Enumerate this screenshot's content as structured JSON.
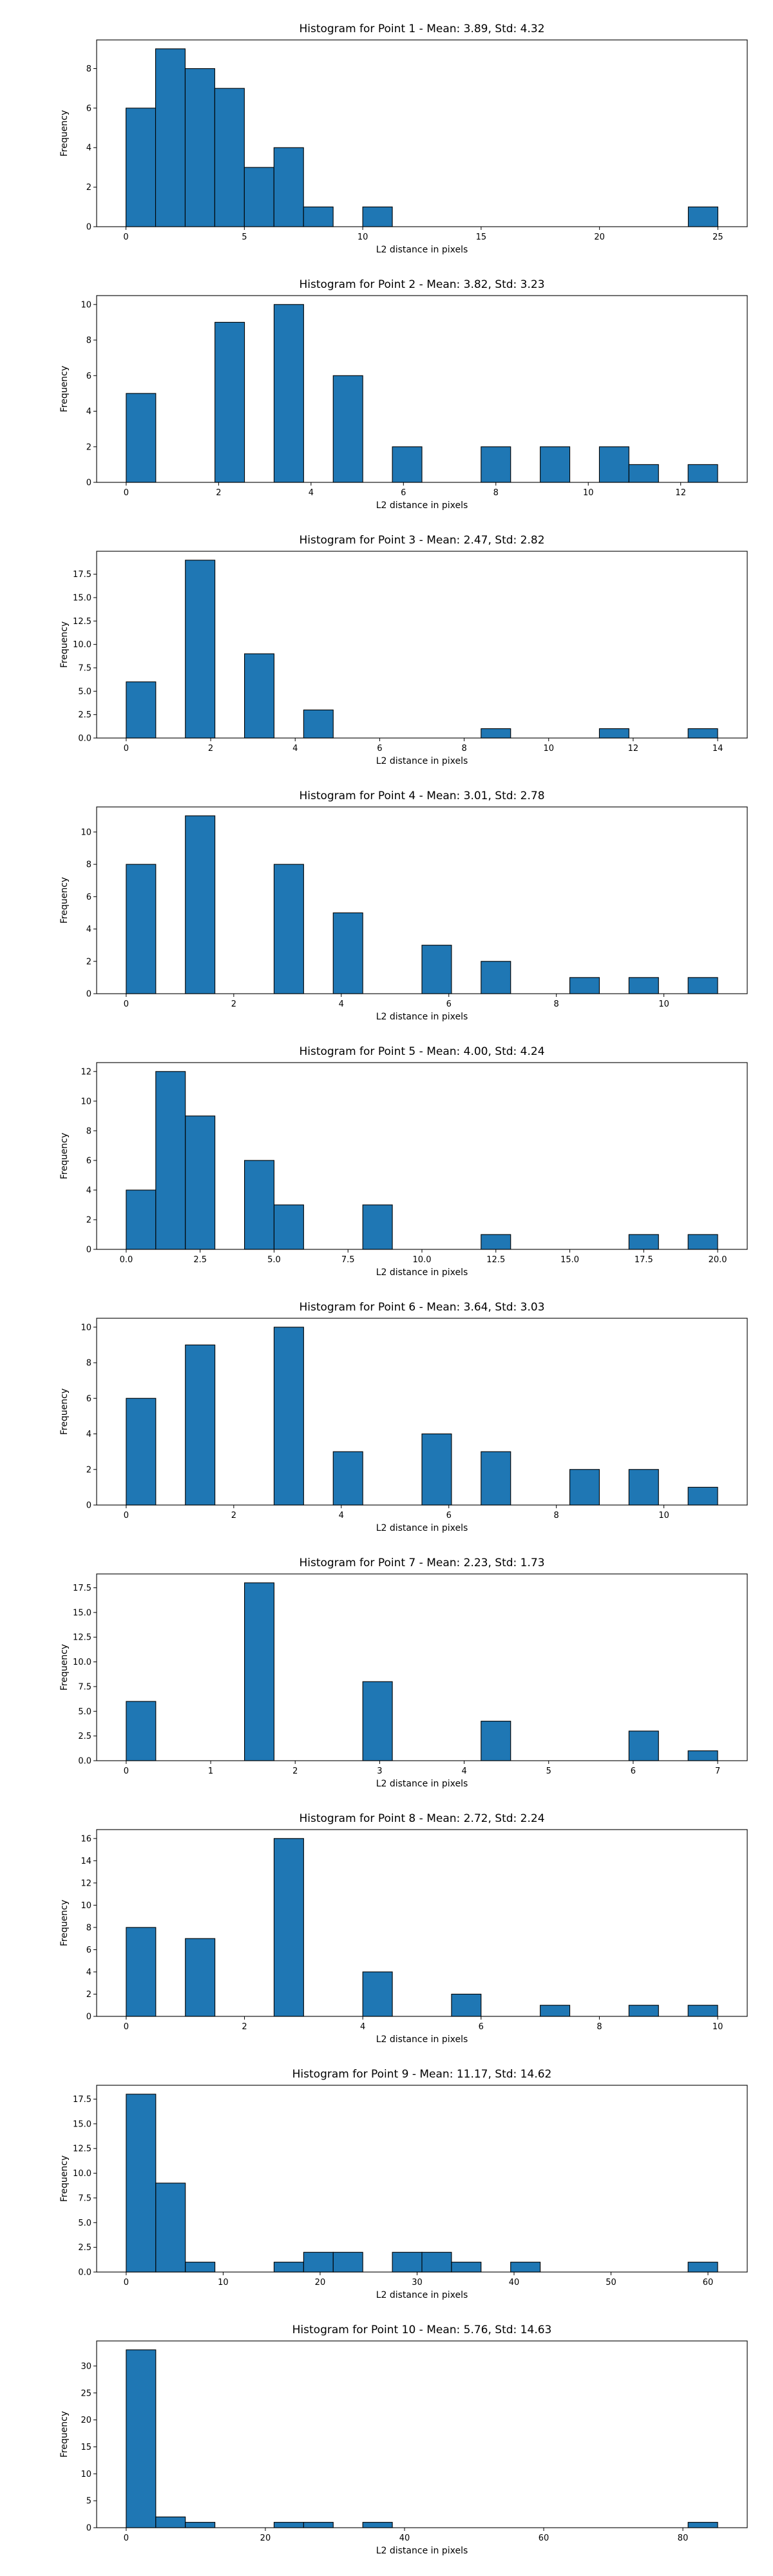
{
  "chart_data": [
    {
      "type": "bar",
      "title": "Histogram for Point 1 - Mean: 3.89, Std: 4.32",
      "xlabel": "L2 distance in pixels",
      "ylabel": "Frequency",
      "xlim": [
        -1.24,
        26.24
      ],
      "ylim": [
        0,
        9.45
      ],
      "xticks": [
        {
          "v": 0,
          "t": "0"
        },
        {
          "v": 5,
          "t": "5"
        },
        {
          "v": 10,
          "t": "10"
        },
        {
          "v": 15,
          "t": "15"
        },
        {
          "v": 20,
          "t": "20"
        },
        {
          "v": 25,
          "t": "25"
        }
      ],
      "yticks": [
        {
          "v": 0,
          "t": "0"
        },
        {
          "v": 2,
          "t": "2"
        },
        {
          "v": 4,
          "t": "4"
        },
        {
          "v": 6,
          "t": "6"
        },
        {
          "v": 8,
          "t": "8"
        }
      ],
      "bin_edges": [
        0,
        1.25,
        2.5,
        3.75,
        5,
        6.25,
        7.5,
        8.75,
        10,
        11.25,
        12.5,
        13.75,
        15,
        16.25,
        17.5,
        18.75,
        20,
        21.25,
        22.5,
        23.75,
        25
      ],
      "counts": [
        6,
        9,
        8,
        7,
        3,
        4,
        1,
        0,
        1,
        0,
        0,
        0,
        0,
        0,
        0,
        0,
        0,
        0,
        0,
        1
      ]
    },
    {
      "type": "bar",
      "title": "Histogram for Point 2 - Mean: 3.82, Std: 3.23",
      "xlabel": "L2 distance in pixels",
      "ylabel": "Frequency",
      "xlim": [
        -0.64,
        13.44
      ],
      "ylim": [
        0,
        10.5
      ],
      "xticks": [
        {
          "v": 0,
          "t": "0"
        },
        {
          "v": 2,
          "t": "2"
        },
        {
          "v": 4,
          "t": "4"
        },
        {
          "v": 6,
          "t": "6"
        },
        {
          "v": 8,
          "t": "8"
        },
        {
          "v": 10,
          "t": "10"
        },
        {
          "v": 12,
          "t": "12"
        }
      ],
      "yticks": [
        {
          "v": 0,
          "t": "0"
        },
        {
          "v": 2,
          "t": "2"
        },
        {
          "v": 4,
          "t": "4"
        },
        {
          "v": 6,
          "t": "6"
        },
        {
          "v": 8,
          "t": "8"
        },
        {
          "v": 10,
          "t": "10"
        }
      ],
      "bin_edges": [
        0,
        0.64,
        1.28,
        1.92,
        2.56,
        3.2,
        3.84,
        4.48,
        5.12,
        5.76,
        6.4,
        7.04,
        7.68,
        8.32,
        8.96,
        9.6,
        10.24,
        10.88,
        11.52,
        12.16,
        12.8
      ],
      "counts": [
        5,
        0,
        0,
        9,
        0,
        10,
        0,
        6,
        0,
        2,
        0,
        0,
        2,
        0,
        2,
        0,
        2,
        1,
        0,
        1
      ]
    },
    {
      "type": "bar",
      "title": "Histogram for Point 3 - Mean: 2.47, Std: 2.82",
      "xlabel": "L2 distance in pixels",
      "ylabel": "Frequency",
      "xlim": [
        -0.7,
        14.7
      ],
      "ylim": [
        0,
        19.95
      ],
      "xticks": [
        {
          "v": 0,
          "t": "0"
        },
        {
          "v": 2,
          "t": "2"
        },
        {
          "v": 4,
          "t": "4"
        },
        {
          "v": 6,
          "t": "6"
        },
        {
          "v": 8,
          "t": "8"
        },
        {
          "v": 10,
          "t": "10"
        },
        {
          "v": 12,
          "t": "12"
        },
        {
          "v": 14,
          "t": "14"
        }
      ],
      "yticks": [
        {
          "v": 0,
          "t": "0.0"
        },
        {
          "v": 2.5,
          "t": "2.5"
        },
        {
          "v": 5,
          "t": "5.0"
        },
        {
          "v": 7.5,
          "t": "7.5"
        },
        {
          "v": 10,
          "t": "10.0"
        },
        {
          "v": 12.5,
          "t": "12.5"
        },
        {
          "v": 15,
          "t": "15.0"
        },
        {
          "v": 17.5,
          "t": "17.5"
        }
      ],
      "bin_edges": [
        0,
        0.7,
        1.4,
        2.1,
        2.8,
        3.5,
        4.2,
        4.9,
        5.6,
        6.3,
        7,
        7.7,
        8.4,
        9.1,
        9.8,
        10.5,
        11.2,
        11.9,
        12.6,
        13.3,
        14
      ],
      "counts": [
        6,
        0,
        19,
        0,
        9,
        0,
        3,
        0,
        0,
        0,
        0,
        0,
        1,
        0,
        0,
        0,
        1,
        0,
        0,
        1
      ]
    },
    {
      "type": "bar",
      "title": "Histogram for Point 4 - Mean: 3.01, Std: 2.78",
      "xlabel": "L2 distance in pixels",
      "ylabel": "Frequency",
      "xlim": [
        -0.55,
        11.55
      ],
      "ylim": [
        0,
        11.55
      ],
      "xticks": [
        {
          "v": 0,
          "t": "0"
        },
        {
          "v": 2,
          "t": "2"
        },
        {
          "v": 4,
          "t": "4"
        },
        {
          "v": 6,
          "t": "6"
        },
        {
          "v": 8,
          "t": "8"
        },
        {
          "v": 10,
          "t": "10"
        }
      ],
      "yticks": [
        {
          "v": 0,
          "t": "0"
        },
        {
          "v": 2,
          "t": "2"
        },
        {
          "v": 4,
          "t": "4"
        },
        {
          "v": 6,
          "t": "6"
        },
        {
          "v": 8,
          "t": "8"
        },
        {
          "v": 10,
          "t": "10"
        }
      ],
      "bin_edges": [
        0,
        0.55,
        1.1,
        1.65,
        2.2,
        2.75,
        3.3,
        3.85,
        4.4,
        4.95,
        5.5,
        6.05,
        6.6,
        7.15,
        7.7,
        8.25,
        8.8,
        9.35,
        9.9,
        10.45,
        11
      ],
      "counts": [
        8,
        0,
        11,
        0,
        0,
        8,
        0,
        5,
        0,
        0,
        3,
        0,
        2,
        0,
        0,
        1,
        0,
        1,
        0,
        1
      ]
    },
    {
      "type": "bar",
      "title": "Histogram for Point 5 - Mean: 4.00, Std: 4.24",
      "xlabel": "L2 distance in pixels",
      "ylabel": "Frequency",
      "xlim": [
        -1,
        21
      ],
      "ylim": [
        0,
        12.6
      ],
      "xticks": [
        {
          "v": 0,
          "t": "0.0"
        },
        {
          "v": 2.5,
          "t": "2.5"
        },
        {
          "v": 5,
          "t": "5.0"
        },
        {
          "v": 7.5,
          "t": "7.5"
        },
        {
          "v": 10,
          "t": "10.0"
        },
        {
          "v": 12.5,
          "t": "12.5"
        },
        {
          "v": 15,
          "t": "15.0"
        },
        {
          "v": 17.5,
          "t": "17.5"
        },
        {
          "v": 20,
          "t": "20.0"
        }
      ],
      "yticks": [
        {
          "v": 0,
          "t": "0"
        },
        {
          "v": 2,
          "t": "2"
        },
        {
          "v": 4,
          "t": "4"
        },
        {
          "v": 6,
          "t": "6"
        },
        {
          "v": 8,
          "t": "8"
        },
        {
          "v": 10,
          "t": "10"
        },
        {
          "v": 12,
          "t": "12"
        }
      ],
      "bin_edges": [
        0,
        1,
        2,
        3,
        4,
        5,
        6,
        7,
        8,
        9,
        10,
        11,
        12,
        13,
        14,
        15,
        16,
        17,
        18,
        19,
        20
      ],
      "counts": [
        4,
        12,
        9,
        0,
        6,
        3,
        0,
        0,
        3,
        0,
        0,
        0,
        1,
        0,
        0,
        0,
        0,
        1,
        0,
        1
      ]
    },
    {
      "type": "bar",
      "title": "Histogram for Point 6 - Mean: 3.64, Std: 3.03",
      "xlabel": "L2 distance in pixels",
      "ylabel": "Frequency",
      "xlim": [
        -0.55,
        11.55
      ],
      "ylim": [
        0,
        10.5
      ],
      "xticks": [
        {
          "v": 0,
          "t": "0"
        },
        {
          "v": 2,
          "t": "2"
        },
        {
          "v": 4,
          "t": "4"
        },
        {
          "v": 6,
          "t": "6"
        },
        {
          "v": 8,
          "t": "8"
        },
        {
          "v": 10,
          "t": "10"
        }
      ],
      "yticks": [
        {
          "v": 0,
          "t": "0"
        },
        {
          "v": 2,
          "t": "2"
        },
        {
          "v": 4,
          "t": "4"
        },
        {
          "v": 6,
          "t": "6"
        },
        {
          "v": 8,
          "t": "8"
        },
        {
          "v": 10,
          "t": "10"
        }
      ],
      "bin_edges": [
        0,
        0.55,
        1.1,
        1.65,
        2.2,
        2.75,
        3.3,
        3.85,
        4.4,
        4.95,
        5.5,
        6.05,
        6.6,
        7.15,
        7.7,
        8.25,
        8.8,
        9.35,
        9.9,
        10.45,
        11
      ],
      "counts": [
        6,
        0,
        9,
        0,
        0,
        10,
        0,
        3,
        0,
        0,
        4,
        0,
        3,
        0,
        0,
        2,
        0,
        2,
        0,
        1
      ]
    },
    {
      "type": "bar",
      "title": "Histogram for Point 7 - Mean: 2.23, Std: 1.73",
      "xlabel": "L2 distance in pixels",
      "ylabel": "Frequency",
      "xlim": [
        -0.35,
        7.35
      ],
      "ylim": [
        0,
        18.9
      ],
      "xticks": [
        {
          "v": 0,
          "t": "0"
        },
        {
          "v": 1,
          "t": "1"
        },
        {
          "v": 2,
          "t": "2"
        },
        {
          "v": 3,
          "t": "3"
        },
        {
          "v": 4,
          "t": "4"
        },
        {
          "v": 5,
          "t": "5"
        },
        {
          "v": 6,
          "t": "6"
        },
        {
          "v": 7,
          "t": "7"
        }
      ],
      "yticks": [
        {
          "v": 0,
          "t": "0.0"
        },
        {
          "v": 2.5,
          "t": "2.5"
        },
        {
          "v": 5,
          "t": "5.0"
        },
        {
          "v": 7.5,
          "t": "7.5"
        },
        {
          "v": 10,
          "t": "10.0"
        },
        {
          "v": 12.5,
          "t": "12.5"
        },
        {
          "v": 15,
          "t": "15.0"
        },
        {
          "v": 17.5,
          "t": "17.5"
        }
      ],
      "bin_edges": [
        0,
        0.35,
        0.7,
        1.05,
        1.4,
        1.75,
        2.1,
        2.45,
        2.8,
        3.15,
        3.5,
        3.85,
        4.2,
        4.55,
        4.9,
        5.25,
        5.6,
        5.95,
        6.3,
        6.65,
        7
      ],
      "counts": [
        6,
        0,
        0,
        0,
        18,
        0,
        0,
        0,
        8,
        0,
        0,
        0,
        4,
        0,
        0,
        0,
        0,
        3,
        0,
        1
      ]
    },
    {
      "type": "bar",
      "title": "Histogram for Point 8 - Mean: 2.72, Std: 2.24",
      "xlabel": "L2 distance in pixels",
      "ylabel": "Frequency",
      "xlim": [
        -0.5,
        10.5
      ],
      "ylim": [
        0,
        16.8
      ],
      "xticks": [
        {
          "v": 0,
          "t": "0"
        },
        {
          "v": 2,
          "t": "2"
        },
        {
          "v": 4,
          "t": "4"
        },
        {
          "v": 6,
          "t": "6"
        },
        {
          "v": 8,
          "t": "8"
        },
        {
          "v": 10,
          "t": "10"
        }
      ],
      "yticks": [
        {
          "v": 0,
          "t": "0"
        },
        {
          "v": 2,
          "t": "2"
        },
        {
          "v": 4,
          "t": "4"
        },
        {
          "v": 6,
          "t": "6"
        },
        {
          "v": 8,
          "t": "8"
        },
        {
          "v": 10,
          "t": "10"
        },
        {
          "v": 12,
          "t": "12"
        },
        {
          "v": 14,
          "t": "14"
        },
        {
          "v": 16,
          "t": "16"
        }
      ],
      "bin_edges": [
        0,
        0.5,
        1,
        1.5,
        2,
        2.5,
        3,
        3.5,
        4,
        4.5,
        5,
        5.5,
        6,
        6.5,
        7,
        7.5,
        8,
        8.5,
        9,
        9.5,
        10
      ],
      "counts": [
        8,
        0,
        7,
        0,
        0,
        16,
        0,
        0,
        4,
        0,
        0,
        2,
        0,
        0,
        1,
        0,
        0,
        1,
        0,
        1
      ]
    },
    {
      "type": "bar",
      "title": "Histogram for Point 9 - Mean: 11.17, Std: 14.62",
      "xlabel": "L2 distance in pixels",
      "ylabel": "Frequency",
      "xlim": [
        -3.05,
        64.05
      ],
      "ylim": [
        0,
        18.9
      ],
      "xticks": [
        {
          "v": 0,
          "t": "0"
        },
        {
          "v": 10,
          "t": "10"
        },
        {
          "v": 20,
          "t": "20"
        },
        {
          "v": 30,
          "t": "30"
        },
        {
          "v": 40,
          "t": "40"
        },
        {
          "v": 50,
          "t": "50"
        },
        {
          "v": 60,
          "t": "60"
        }
      ],
      "yticks": [
        {
          "v": 0,
          "t": "0.0"
        },
        {
          "v": 2.5,
          "t": "2.5"
        },
        {
          "v": 5,
          "t": "5.0"
        },
        {
          "v": 7.5,
          "t": "7.5"
        },
        {
          "v": 10,
          "t": "10.0"
        },
        {
          "v": 12.5,
          "t": "12.5"
        },
        {
          "v": 15,
          "t": "15.0"
        },
        {
          "v": 17.5,
          "t": "17.5"
        }
      ],
      "bin_edges": [
        0,
        3.05,
        6.1,
        9.15,
        12.2,
        15.25,
        18.3,
        21.35,
        24.4,
        27.45,
        30.5,
        33.55,
        36.6,
        39.65,
        42.7,
        45.75,
        48.8,
        51.85,
        54.9,
        57.95,
        61
      ],
      "counts": [
        18,
        9,
        1,
        0,
        0,
        1,
        2,
        2,
        0,
        2,
        2,
        1,
        0,
        1,
        0,
        0,
        0,
        0,
        0,
        1
      ]
    },
    {
      "type": "bar",
      "title": "Histogram for Point 10 - Mean: 5.76, Std: 14.63",
      "xlabel": "L2 distance in pixels",
      "ylabel": "Frequency",
      "xlim": [
        -4.25,
        89.25
      ],
      "ylim": [
        0,
        34.65
      ],
      "xticks": [
        {
          "v": 0,
          "t": "0"
        },
        {
          "v": 20,
          "t": "20"
        },
        {
          "v": 40,
          "t": "40"
        },
        {
          "v": 60,
          "t": "60"
        },
        {
          "v": 80,
          "t": "80"
        }
      ],
      "yticks": [
        {
          "v": 0,
          "t": "0"
        },
        {
          "v": 5,
          "t": "5"
        },
        {
          "v": 10,
          "t": "10"
        },
        {
          "v": 15,
          "t": "15"
        },
        {
          "v": 20,
          "t": "20"
        },
        {
          "v": 25,
          "t": "25"
        },
        {
          "v": 30,
          "t": "30"
        }
      ],
      "bin_edges": [
        0,
        4.25,
        8.5,
        12.75,
        17,
        21.25,
        25.5,
        29.75,
        34,
        38.25,
        42.5,
        46.75,
        51,
        55.25,
        59.5,
        63.75,
        68,
        72.25,
        76.5,
        80.75,
        85
      ],
      "counts": [
        33,
        2,
        1,
        0,
        0,
        1,
        1,
        0,
        1,
        0,
        0,
        0,
        0,
        0,
        0,
        0,
        0,
        0,
        0,
        1
      ]
    }
  ],
  "colors": {
    "bar_fill": "#1f77b4",
    "bar_edge": "#000000",
    "axes": "#000000",
    "background": "#ffffff"
  }
}
